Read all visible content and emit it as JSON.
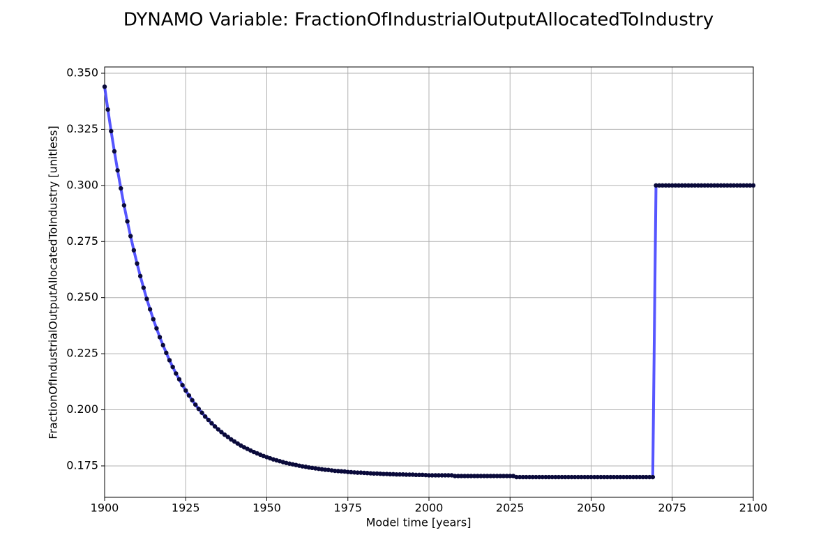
{
  "chart_data": {
    "type": "line",
    "title": "DYNAMO Variable: FractionOfIndustrialOutputAllocatedToIndustry",
    "x_label": "Model time [years]",
    "y_label": "FractionOfIndustrialOutputAllocatedToIndustry [unitless]",
    "color": "#4444ff",
    "marker_color": "#0a0a3a",
    "grid": true,
    "xlim": [
      1900,
      2100
    ],
    "xticks": [
      1900,
      1925,
      1950,
      1975,
      2000,
      2025,
      2050,
      2075,
      2100
    ],
    "ylim": [
      0.161,
      0.3528
    ],
    "yticks": [
      0.175,
      {
        "value": 0.2,
        "label": "0.200"
      },
      0.225,
      {
        "value": 0.25,
        "label": "0.250"
      },
      0.275,
      {
        "value": 0.3,
        "label": "0.300"
      },
      0.325,
      {
        "value": 0.35,
        "label": "0.350"
      }
    ],
    "x": [
      1900,
      1901,
      1902,
      1903,
      1904,
      1905,
      1906,
      1907,
      1908,
      1909,
      1910,
      1911,
      1912,
      1913,
      1914,
      1915,
      1916,
      1917,
      1918,
      1919,
      1920,
      1921,
      1922,
      1923,
      1924,
      1925,
      1926,
      1927,
      1928,
      1929,
      1930,
      1931,
      1932,
      1933,
      1934,
      1935,
      1936,
      1937,
      1938,
      1939,
      1940,
      1941,
      1942,
      1943,
      1944,
      1945,
      1946,
      1947,
      1948,
      1949,
      1950,
      1951,
      1952,
      1953,
      1954,
      1955,
      1956,
      1957,
      1958,
      1959,
      1960,
      1961,
      1962,
      1963,
      1964,
      1965,
      1966,
      1967,
      1968,
      1969,
      1970,
      1971,
      1972,
      1973,
      1974,
      1975,
      1976,
      1977,
      1978,
      1979,
      1980,
      1981,
      1982,
      1983,
      1984,
      1985,
      1986,
      1987,
      1988,
      1989,
      1990,
      1991,
      1992,
      1993,
      1994,
      1995,
      1996,
      1997,
      1998,
      1999,
      2000,
      2001,
      2002,
      2003,
      2004,
      2005,
      2006,
      2007,
      2008,
      2009,
      2010,
      2011,
      2012,
      2013,
      2014,
      2015,
      2016,
      2017,
      2018,
      2019,
      2020,
      2021,
      2022,
      2023,
      2024,
      2025,
      2026,
      2027,
      2028,
      2029,
      2030,
      2031,
      2032,
      2033,
      2034,
      2035,
      2036,
      2037,
      2038,
      2039,
      2040,
      2041,
      2042,
      2043,
      2044,
      2045,
      2046,
      2047,
      2048,
      2049,
      2050,
      2051,
      2052,
      2053,
      2054,
      2055,
      2056,
      2057,
      2058,
      2059,
      2060,
      2061,
      2062,
      2063,
      2064,
      2065,
      2066,
      2067,
      2068,
      2069,
      2070,
      2071,
      2072,
      2073,
      2074,
      2075,
      2076,
      2077,
      2078,
      2079,
      2080,
      2081,
      2082,
      2083,
      2084,
      2085,
      2086,
      2087,
      2088,
      2089,
      2090,
      2091,
      2092,
      2093,
      2094,
      2095,
      2096,
      2097,
      2098,
      2099,
      2100
    ],
    "values": [
      0.344,
      0.3338,
      0.3242,
      0.3152,
      0.3067,
      0.2987,
      0.2911,
      0.284,
      0.2774,
      0.2711,
      0.2652,
      0.2596,
      0.2544,
      0.2494,
      0.2448,
      0.2404,
      0.2363,
      0.2324,
      0.2288,
      0.2254,
      0.2221,
      0.2191,
      0.2162,
      0.2136,
      0.211,
      0.2086,
      0.2064,
      0.2043,
      0.2023,
      0.2004,
      0.1987,
      0.197,
      0.1955,
      0.194,
      0.1926,
      0.1913,
      0.1901,
      0.1889,
      0.1879,
      0.1868,
      0.1859,
      0.185,
      0.1841,
      0.1833,
      0.1826,
      0.1819,
      0.1812,
      0.1806,
      0.18,
      0.1794,
      0.1789,
      0.1784,
      0.1779,
      0.1775,
      0.1771,
      0.1767,
      0.1763,
      0.176,
      0.1757,
      0.1754,
      0.1751,
      0.1748,
      0.1746,
      0.1743,
      0.1741,
      0.1739,
      0.1737,
      0.1735,
      0.1733,
      0.1732,
      0.173,
      0.1728,
      0.1727,
      0.1726,
      0.1725,
      0.1723,
      0.1722,
      0.1721,
      0.172,
      0.172,
      0.1719,
      0.1718,
      0.1717,
      0.1716,
      0.1716,
      0.1715,
      0.1714,
      0.1714,
      0.1713,
      0.1713,
      0.1712,
      0.1712,
      0.1712,
      0.1711,
      0.1711,
      0.1711,
      0.171,
      0.171,
      0.171,
      0.1709,
      0.1708,
      0.1708,
      0.1708,
      0.1708,
      0.1708,
      0.1708,
      0.1708,
      0.1708,
      0.1705,
      0.1705,
      0.1705,
      0.1705,
      0.1705,
      0.1705,
      0.1705,
      0.1705,
      0.1705,
      0.1705,
      0.1705,
      0.1705,
      0.1705,
      0.1705,
      0.1705,
      0.1705,
      0.1705,
      0.1705,
      0.1705,
      0.17,
      0.17,
      0.17,
      0.17,
      0.17,
      0.17,
      0.17,
      0.17,
      0.17,
      0.17,
      0.17,
      0.17,
      0.17,
      0.17,
      0.17,
      0.17,
      0.17,
      0.17,
      0.17,
      0.17,
      0.17,
      0.17,
      0.17,
      0.17,
      0.17,
      0.17,
      0.17,
      0.17,
      0.17,
      0.17,
      0.17,
      0.17,
      0.17,
      0.17,
      0.17,
      0.17,
      0.17,
      0.17,
      0.17,
      0.17,
      0.17,
      0.17,
      0.17,
      0.3,
      0.3,
      0.3,
      0.3,
      0.3,
      0.3,
      0.3,
      0.3,
      0.3,
      0.3,
      0.3,
      0.3,
      0.3,
      0.3,
      0.3,
      0.3,
      0.3,
      0.3,
      0.3,
      0.3,
      0.3,
      0.3,
      0.3,
      0.3,
      0.3,
      0.3,
      0.3,
      0.3,
      0.3,
      0.3,
      0.3
    ]
  }
}
